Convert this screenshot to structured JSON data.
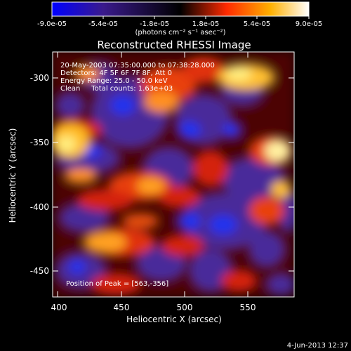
{
  "colorbar": {
    "ticks": [
      "-9.0e-05",
      "-5.4e-05",
      "-1.8e-05",
      "1.8e-05",
      "5.4e-05",
      "9.0e-05"
    ],
    "units": "(photons cm⁻² s⁻¹ asec⁻²)"
  },
  "title": "Reconstructed RHESSI Image",
  "annotations": {
    "time": "20-May-2003 07:35:00.000 to 07:38:28.000",
    "detectors": "Detectors: 4F 5F 6F 7F 8F, Att 0",
    "energy": "Energy Range: 25.0 - 50.0 keV",
    "method": "Clean     Total counts: 1.63e+03",
    "peak": "Position of Peak = [563,-356]"
  },
  "axes": {
    "xlabel": "Heliocentric X (arcsec)",
    "ylabel": "Heliocentric Y (arcsec)",
    "xticks": [
      "400",
      "450",
      "500",
      "550"
    ],
    "yticks": [
      "-300",
      "-350",
      "-400",
      "-450"
    ],
    "xrange": [
      396,
      588
    ],
    "yrange": [
      -472,
      -282
    ]
  },
  "timestamp": "4-Jun-2013 12:37",
  "colors": {
    "colormap": [
      "#0000ff",
      "#3a1a8c",
      "#000000",
      "#ff2a00",
      "#ffb000",
      "#ffffff"
    ]
  }
}
